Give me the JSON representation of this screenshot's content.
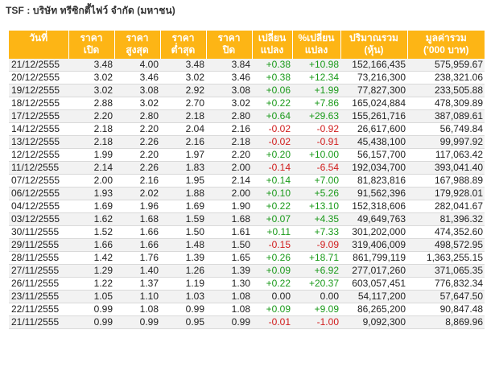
{
  "page": {
    "title": "TSF : บริษัท ทรีซิกตี้ไฟว์ จำกัด (มหาชน)"
  },
  "table": {
    "headers": [
      [
        "วันที่",
        ""
      ],
      [
        "ราคา",
        "เปิด"
      ],
      [
        "ราคา",
        "สูงสุด"
      ],
      [
        "ราคา",
        "ต่ำสุด"
      ],
      [
        "ราคา",
        "ปิด"
      ],
      [
        "เปลี่ยน",
        "แปลง"
      ],
      [
        "%เปลี่ยน",
        "แปลง"
      ],
      [
        "ปริมาณรวม",
        "(หุ้น)"
      ],
      [
        "มูลค่ารวม",
        "('000 บาท)"
      ]
    ],
    "colors": {
      "header_bg": "#fdb515",
      "header_text": "#ffffff",
      "positive": "#1a9a1a",
      "negative": "#d01c1c"
    },
    "rows": [
      {
        "date": "21/12/2555",
        "open": "3.48",
        "high": "4.00",
        "low": "3.48",
        "close": "3.84",
        "change": "+0.38",
        "pct": "+10.98",
        "volume": "152,166,435",
        "value": "575,959.67",
        "dir": "pos"
      },
      {
        "date": "20/12/2555",
        "open": "3.02",
        "high": "3.46",
        "low": "3.02",
        "close": "3.46",
        "change": "+0.38",
        "pct": "+12.34",
        "volume": "73,216,300",
        "value": "238,321.06",
        "dir": "pos"
      },
      {
        "date": "19/12/2555",
        "open": "3.02",
        "high": "3.08",
        "low": "2.92",
        "close": "3.08",
        "change": "+0.06",
        "pct": "+1.99",
        "volume": "77,827,300",
        "value": "233,505.88",
        "dir": "pos"
      },
      {
        "date": "18/12/2555",
        "open": "2.88",
        "high": "3.02",
        "low": "2.70",
        "close": "3.02",
        "change": "+0.22",
        "pct": "+7.86",
        "volume": "165,024,884",
        "value": "478,309.89",
        "dir": "pos"
      },
      {
        "date": "17/12/2555",
        "open": "2.20",
        "high": "2.80",
        "low": "2.18",
        "close": "2.80",
        "change": "+0.64",
        "pct": "+29.63",
        "volume": "155,261,716",
        "value": "387,089.61",
        "dir": "pos"
      },
      {
        "date": "14/12/2555",
        "open": "2.18",
        "high": "2.20",
        "low": "2.04",
        "close": "2.16",
        "change": "-0.02",
        "pct": "-0.92",
        "volume": "26,617,600",
        "value": "56,749.84",
        "dir": "neg"
      },
      {
        "date": "13/12/2555",
        "open": "2.18",
        "high": "2.26",
        "low": "2.16",
        "close": "2.18",
        "change": "-0.02",
        "pct": "-0.91",
        "volume": "45,438,100",
        "value": "99,997.92",
        "dir": "neg"
      },
      {
        "date": "12/12/2555",
        "open": "1.99",
        "high": "2.20",
        "low": "1.97",
        "close": "2.20",
        "change": "+0.20",
        "pct": "+10.00",
        "volume": "56,157,700",
        "value": "117,063.42",
        "dir": "pos"
      },
      {
        "date": "11/12/2555",
        "open": "2.14",
        "high": "2.26",
        "low": "1.83",
        "close": "2.00",
        "change": "-0.14",
        "pct": "-6.54",
        "volume": "192,034,700",
        "value": "393,041.40",
        "dir": "neg"
      },
      {
        "date": "07/12/2555",
        "open": "2.00",
        "high": "2.16",
        "low": "1.95",
        "close": "2.14",
        "change": "+0.14",
        "pct": "+7.00",
        "volume": "81,823,816",
        "value": "167,988.89",
        "dir": "pos"
      },
      {
        "date": "06/12/2555",
        "open": "1.93",
        "high": "2.02",
        "low": "1.88",
        "close": "2.00",
        "change": "+0.10",
        "pct": "+5.26",
        "volume": "91,562,396",
        "value": "179,928.01",
        "dir": "pos"
      },
      {
        "date": "04/12/2555",
        "open": "1.69",
        "high": "1.96",
        "low": "1.69",
        "close": "1.90",
        "change": "+0.22",
        "pct": "+13.10",
        "volume": "152,318,606",
        "value": "282,041.67",
        "dir": "pos"
      },
      {
        "date": "03/12/2555",
        "open": "1.62",
        "high": "1.68",
        "low": "1.59",
        "close": "1.68",
        "change": "+0.07",
        "pct": "+4.35",
        "volume": "49,649,763",
        "value": "81,396.32",
        "dir": "pos"
      },
      {
        "date": "30/11/2555",
        "open": "1.52",
        "high": "1.66",
        "low": "1.50",
        "close": "1.61",
        "change": "+0.11",
        "pct": "+7.33",
        "volume": "301,202,000",
        "value": "474,352.60",
        "dir": "pos"
      },
      {
        "date": "29/11/2555",
        "open": "1.66",
        "high": "1.66",
        "low": "1.48",
        "close": "1.50",
        "change": "-0.15",
        "pct": "-9.09",
        "volume": "319,406,009",
        "value": "498,572.95",
        "dir": "neg"
      },
      {
        "date": "28/11/2555",
        "open": "1.42",
        "high": "1.76",
        "low": "1.39",
        "close": "1.65",
        "change": "+0.26",
        "pct": "+18.71",
        "volume": "861,799,119",
        "value": "1,363,255.15",
        "dir": "pos"
      },
      {
        "date": "27/11/2555",
        "open": "1.29",
        "high": "1.40",
        "low": "1.26",
        "close": "1.39",
        "change": "+0.09",
        "pct": "+6.92",
        "volume": "277,017,260",
        "value": "371,065.35",
        "dir": "pos"
      },
      {
        "date": "26/11/2555",
        "open": "1.22",
        "high": "1.37",
        "low": "1.19",
        "close": "1.30",
        "change": "+0.22",
        "pct": "+20.37",
        "volume": "603,057,451",
        "value": "776,832.34",
        "dir": "pos"
      },
      {
        "date": "23/11/2555",
        "open": "1.05",
        "high": "1.10",
        "low": "1.03",
        "close": "1.08",
        "change": "0.00",
        "pct": "0.00",
        "volume": "54,117,200",
        "value": "57,647.50",
        "dir": "neu"
      },
      {
        "date": "22/11/2555",
        "open": "0.99",
        "high": "1.08",
        "low": "0.99",
        "close": "1.08",
        "change": "+0.09",
        "pct": "+9.09",
        "volume": "86,265,200",
        "value": "90,847.48",
        "dir": "pos"
      },
      {
        "date": "21/11/2555",
        "open": "0.99",
        "high": "0.99",
        "low": "0.95",
        "close": "0.99",
        "change": "-0.01",
        "pct": "-1.00",
        "volume": "9,092,300",
        "value": "8,869.96",
        "dir": "neg"
      }
    ]
  }
}
